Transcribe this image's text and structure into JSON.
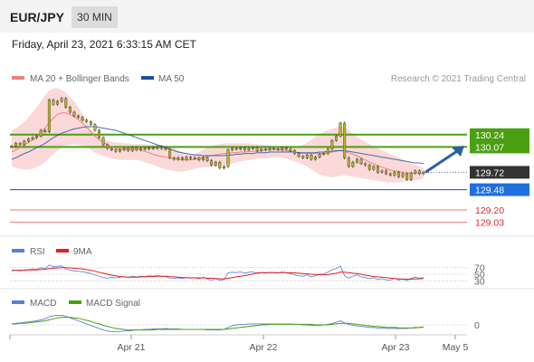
{
  "header": {
    "symbol": "EUR/JPY",
    "timeframe": "30 MIN",
    "datetime": "Friday, April 23, 2021 6:33:15 AM CET"
  },
  "price_panel": {
    "legend": [
      {
        "label": "MA 20 + Bollinger Bands",
        "color": "#f08080"
      },
      {
        "label": "MA 50",
        "color": "#1f4e9a"
      }
    ],
    "credit": "Research © 2021 Trading Central"
  },
  "rsi_panel": {
    "legend": [
      {
        "label": "RSI",
        "color": "#5b7fd6"
      },
      {
        "label": "9MA",
        "color": "#e02020"
      }
    ],
    "ticks": [
      "70",
      "50",
      "30"
    ]
  },
  "macd_panel": {
    "legend": [
      {
        "label": "MACD",
        "color": "#5b7fd6"
      },
      {
        "label": "MACD Signal",
        "color": "#4aa010"
      }
    ],
    "ticks": [
      "0"
    ]
  },
  "x_axis": {
    "labels": [
      "Apr 21",
      "Apr 22",
      "Apr 23",
      "May 5"
    ]
  },
  "colors": {
    "resistance": "#4aa010",
    "pivot": "#1f4e9a",
    "support": "#e06060",
    "current": "#333333",
    "arrow": "#2a5fa8",
    "candle": "#b5b525",
    "bollinger_fill": "#fbd5d5",
    "ma20": "#f08080",
    "ma50": "#1f4e9a"
  },
  "chart_data": {
    "type": "candlestick",
    "price_range": [
      128.95,
      130.85
    ],
    "levels": [
      {
        "value": 130.24,
        "label": "130.24",
        "kind": "resistance"
      },
      {
        "value": 130.07,
        "label": "130.07",
        "kind": "resistance"
      },
      {
        "value": 129.72,
        "label": "129.72",
        "kind": "current"
      },
      {
        "value": 129.48,
        "label": "129.48",
        "kind": "pivot"
      },
      {
        "value": 129.2,
        "label": "129.20",
        "kind": "support"
      },
      {
        "value": 129.03,
        "label": "129.03",
        "kind": "support"
      }
    ],
    "close": [
      130.08,
      130.12,
      130.1,
      130.15,
      130.18,
      130.2,
      130.22,
      130.3,
      130.28,
      130.72,
      130.66,
      130.7,
      130.74,
      130.62,
      130.55,
      130.5,
      130.48,
      130.44,
      130.42,
      130.38,
      130.3,
      130.2,
      130.1,
      130.05,
      130.03,
      130.01,
      130.03,
      130.05,
      130.02,
      130.06,
      130.03,
      130.05,
      130.04,
      130.06,
      130.05,
      130.07,
      130.05,
      130.04,
      129.92,
      129.9,
      129.92,
      129.9,
      129.93,
      129.91,
      129.92,
      129.89,
      129.92,
      129.88,
      129.82,
      129.86,
      129.78,
      129.8,
      130.03,
      130.05,
      130.04,
      130.06,
      130.03,
      130.05,
      130.06,
      130.02,
      130.04,
      130.03,
      130.05,
      130.04,
      130.03,
      130.06,
      130.04,
      130.02,
      129.98,
      129.94,
      129.92,
      129.96,
      129.9,
      129.93,
      129.97,
      129.98,
      130.04,
      130.16,
      130.22,
      130.4,
      129.92,
      129.8,
      129.86,
      129.9,
      129.84,
      129.82,
      129.76,
      129.8,
      129.72,
      129.74,
      129.7,
      129.68,
      129.72,
      129.66,
      129.7,
      129.62,
      129.71,
      129.74,
      129.7,
      129.72
    ],
    "ma20": [
      130.0,
      130.03,
      130.06,
      130.1,
      130.13,
      130.17,
      130.2,
      130.26,
      130.33,
      130.41,
      130.47,
      130.52,
      130.54,
      130.54,
      130.52,
      130.49,
      130.45,
      130.4,
      130.34,
      130.28,
      130.22,
      130.17,
      130.13,
      130.1,
      130.07,
      130.05,
      130.04,
      130.04,
      130.04,
      130.04,
      130.04,
      130.03,
      130.01,
      129.99,
      129.97,
      129.95,
      129.94,
      129.93,
      129.92,
      129.91,
      129.9,
      129.89,
      129.89,
      129.89,
      129.9,
      129.91,
      129.93,
      129.94,
      129.95,
      129.96,
      129.97,
      129.98,
      129.98,
      129.99,
      129.99,
      130.0,
      130.0,
      130.01,
      130.01,
      130.01,
      130.02,
      130.03,
      130.04,
      130.04,
      130.04,
      130.03,
      130.02,
      130.01,
      130.0,
      129.99,
      129.98,
      129.98,
      129.98,
      129.98,
      129.98,
      129.98,
      129.99,
      130.0,
      130.01,
      130.02,
      130.01,
      129.99,
      129.97,
      129.95,
      129.92,
      129.89,
      129.86,
      129.84,
      129.81,
      129.79,
      129.77,
      129.75,
      129.74,
      129.73,
      129.72,
      129.71,
      129.71,
      129.71,
      129.71,
      129.71
    ],
    "bb_upper": [
      130.3,
      130.33,
      130.37,
      130.42,
      130.48,
      130.55,
      130.62,
      130.7,
      130.78,
      130.85,
      130.88,
      130.88,
      130.86,
      130.82,
      130.76,
      130.7,
      130.62,
      130.52,
      130.42,
      130.32,
      130.26,
      130.21,
      130.18,
      130.16,
      130.14,
      130.13,
      130.13,
      130.12,
      130.12,
      130.11,
      130.11,
      130.11,
      130.11,
      130.1,
      130.1,
      130.1,
      130.1,
      130.09,
      130.08,
      130.06,
      130.03,
      130.0,
      129.98,
      129.97,
      129.98,
      130.0,
      130.03,
      130.06,
      130.08,
      130.1,
      130.11,
      130.12,
      130.12,
      130.12,
      130.12,
      130.12,
      130.12,
      130.12,
      130.11,
      130.11,
      130.1,
      130.1,
      130.09,
      130.08,
      130.08,
      130.07,
      130.07,
      130.07,
      130.07,
      130.07,
      130.1,
      130.13,
      130.17,
      130.21,
      130.25,
      130.28,
      130.3,
      130.32,
      130.34,
      130.35,
      130.34,
      130.3,
      130.25,
      130.21,
      130.17,
      130.14,
      130.11,
      130.08,
      130.05,
      130.03,
      130.0,
      129.97,
      129.95,
      129.92,
      129.9,
      129.87,
      129.85,
      129.82,
      129.8,
      129.78
    ],
    "bb_lower": [
      129.8,
      129.78,
      129.77,
      129.76,
      129.76,
      129.77,
      129.79,
      129.82,
      129.86,
      129.92,
      129.97,
      130.02,
      130.06,
      130.09,
      130.1,
      130.11,
      130.1,
      130.09,
      130.07,
      130.03,
      129.99,
      129.97,
      129.95,
      129.93,
      129.91,
      129.9,
      129.89,
      129.89,
      129.89,
      129.89,
      129.89,
      129.88,
      129.86,
      129.84,
      129.82,
      129.8,
      129.78,
      129.76,
      129.75,
      129.74,
      129.73,
      129.73,
      129.74,
      129.75,
      129.77,
      129.78,
      129.79,
      129.79,
      129.8,
      129.8,
      129.81,
      129.82,
      129.83,
      129.84,
      129.86,
      129.87,
      129.88,
      129.89,
      129.9,
      129.91,
      129.91,
      129.91,
      129.92,
      129.93,
      129.93,
      129.92,
      129.91,
      129.89,
      129.87,
      129.85,
      129.83,
      129.8,
      129.76,
      129.72,
      129.69,
      129.67,
      129.66,
      129.65,
      129.66,
      129.67,
      129.68,
      129.67,
      129.66,
      129.65,
      129.64,
      129.63,
      129.62,
      129.61,
      129.6,
      129.59,
      129.58,
      129.58,
      129.58,
      129.58,
      129.59,
      129.6,
      129.6,
      129.61,
      129.62,
      129.63
    ],
    "ma50": [
      129.9,
      129.92,
      129.95,
      129.98,
      130.0,
      130.03,
      130.06,
      130.09,
      130.12,
      130.16,
      130.2,
      130.23,
      130.26,
      130.28,
      130.3,
      130.32,
      130.33,
      130.34,
      130.35,
      130.35,
      130.35,
      130.34,
      130.33,
      130.32,
      130.31,
      130.3,
      130.28,
      130.26,
      130.24,
      130.22,
      130.2,
      130.18,
      130.16,
      130.14,
      130.12,
      130.1,
      130.08,
      130.06,
      130.04,
      130.02,
      130.0,
      129.99,
      129.98,
      129.97,
      129.96,
      129.96,
      129.95,
      129.95,
      129.95,
      129.95,
      129.95,
      129.95,
      129.96,
      129.96,
      129.97,
      129.97,
      129.98,
      129.98,
      129.98,
      129.99,
      129.99,
      129.99,
      130.0,
      130.0,
      130.0,
      130.0,
      130.0,
      130.0,
      130.0,
      129.99,
      129.99,
      129.99,
      129.99,
      129.99,
      130.0,
      130.0,
      130.01,
      130.01,
      130.02,
      130.02,
      130.02,
      130.01,
      130.0,
      129.99,
      129.98,
      129.97,
      129.96,
      129.95,
      129.94,
      129.93,
      129.92,
      129.91,
      129.9,
      129.89,
      129.88,
      129.87,
      129.86,
      129.85,
      129.85,
      129.84
    ],
    "rsi": [
      60,
      62,
      60,
      63,
      64,
      66,
      65,
      70,
      66,
      78,
      72,
      74,
      75,
      66,
      62,
      60,
      59,
      57,
      55,
      52,
      48,
      44,
      40,
      38,
      40,
      39,
      41,
      43,
      40,
      44,
      42,
      44,
      43,
      45,
      44,
      46,
      44,
      43,
      38,
      37,
      39,
      37,
      40,
      38,
      40,
      36,
      41,
      36,
      32,
      37,
      31,
      34,
      54,
      56,
      55,
      57,
      53,
      56,
      57,
      52,
      55,
      53,
      56,
      55,
      53,
      57,
      54,
      52,
      48,
      45,
      44,
      48,
      42,
      45,
      50,
      51,
      56,
      64,
      67,
      75,
      45,
      38,
      44,
      48,
      42,
      40,
      36,
      40,
      34,
      37,
      33,
      32,
      38,
      32,
      36,
      30,
      38,
      41,
      38,
      40
    ],
    "rsi_ma9": [
      62,
      62,
      62,
      62,
      63,
      63,
      63,
      64,
      65,
      67,
      68,
      69,
      70,
      70,
      69,
      68,
      67,
      66,
      64,
      62,
      59,
      56,
      53,
      50,
      47,
      45,
      43,
      42,
      41,
      41,
      41,
      42,
      42,
      43,
      43,
      44,
      44,
      44,
      43,
      42,
      41,
      40,
      40,
      39,
      39,
      39,
      39,
      38,
      38,
      37,
      36,
      36,
      38,
      40,
      42,
      44,
      46,
      48,
      51,
      54,
      55,
      55,
      55,
      55,
      55,
      55,
      55,
      54,
      54,
      53,
      52,
      51,
      50,
      49,
      48,
      48,
      49,
      51,
      53,
      56,
      56,
      55,
      53,
      52,
      50,
      47,
      45,
      43,
      42,
      41,
      40,
      38,
      37,
      36,
      35,
      35,
      35,
      36,
      36,
      37
    ],
    "macd": [
      0.02,
      0.03,
      0.04,
      0.05,
      0.06,
      0.07,
      0.08,
      0.1,
      0.12,
      0.16,
      0.18,
      0.19,
      0.19,
      0.17,
      0.14,
      0.11,
      0.08,
      0.05,
      0.02,
      -0.01,
      -0.04,
      -0.07,
      -0.1,
      -0.12,
      -0.13,
      -0.13,
      -0.13,
      -0.12,
      -0.12,
      -0.11,
      -0.1,
      -0.1,
      -0.09,
      -0.09,
      -0.08,
      -0.08,
      -0.08,
      -0.07,
      -0.08,
      -0.08,
      -0.08,
      -0.09,
      -0.09,
      -0.09,
      -0.09,
      -0.09,
      -0.09,
      -0.1,
      -0.1,
      -0.1,
      -0.1,
      -0.09,
      -0.05,
      -0.02,
      0.0,
      0.01,
      0.01,
      0.02,
      0.02,
      0.02,
      0.02,
      0.02,
      0.02,
      0.02,
      0.02,
      0.02,
      0.02,
      0.02,
      0.01,
      0.01,
      0.0,
      0.0,
      -0.01,
      -0.01,
      -0.01,
      0.0,
      0.01,
      0.03,
      0.05,
      0.08,
      0.04,
      0.01,
      -0.01,
      -0.02,
      -0.03,
      -0.04,
      -0.05,
      -0.05,
      -0.06,
      -0.06,
      -0.07,
      -0.07,
      -0.07,
      -0.07,
      -0.07,
      -0.07,
      -0.06,
      -0.05,
      -0.05,
      -0.04
    ],
    "macd_signal": [
      0.02,
      0.02,
      0.03,
      0.03,
      0.04,
      0.05,
      0.06,
      0.07,
      0.08,
      0.1,
      0.12,
      0.14,
      0.15,
      0.15,
      0.15,
      0.14,
      0.13,
      0.11,
      0.09,
      0.07,
      0.04,
      0.02,
      -0.01,
      -0.03,
      -0.05,
      -0.07,
      -0.08,
      -0.09,
      -0.1,
      -0.1,
      -0.1,
      -0.1,
      -0.1,
      -0.1,
      -0.1,
      -0.09,
      -0.09,
      -0.09,
      -0.09,
      -0.09,
      -0.09,
      -0.09,
      -0.09,
      -0.09,
      -0.09,
      -0.09,
      -0.09,
      -0.09,
      -0.09,
      -0.09,
      -0.09,
      -0.09,
      -0.08,
      -0.07,
      -0.06,
      -0.05,
      -0.04,
      -0.03,
      -0.02,
      -0.01,
      0.0,
      0.0,
      0.01,
      0.01,
      0.01,
      0.01,
      0.01,
      0.01,
      0.01,
      0.01,
      0.01,
      0.01,
      0.01,
      0.0,
      0.0,
      0.0,
      0.0,
      0.01,
      0.02,
      0.03,
      0.03,
      0.03,
      0.02,
      0.01,
      0.0,
      -0.01,
      -0.02,
      -0.03,
      -0.03,
      -0.04,
      -0.05,
      -0.05,
      -0.05,
      -0.06,
      -0.06,
      -0.06,
      -0.06,
      -0.06,
      -0.05,
      -0.05
    ],
    "rsi_range": [
      0,
      100
    ],
    "macd_range": [
      -0.25,
      0.25
    ]
  }
}
